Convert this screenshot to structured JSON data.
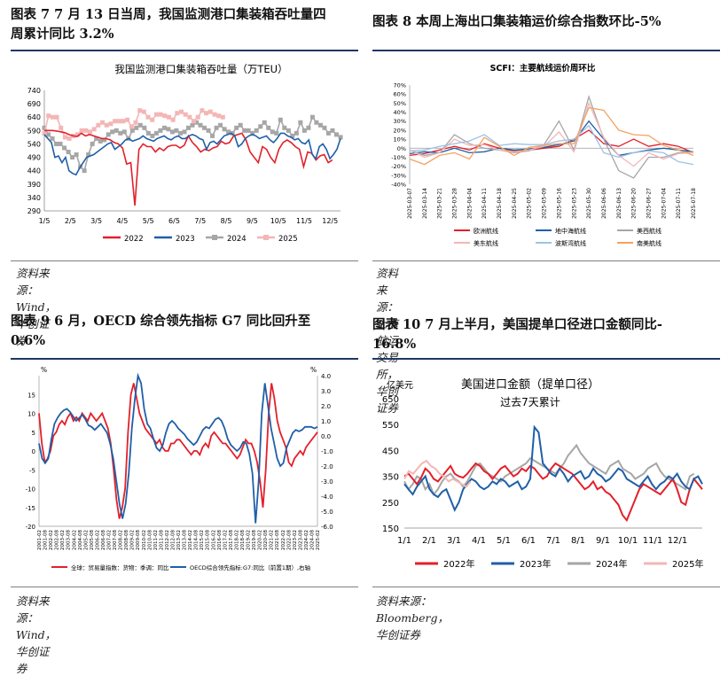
{
  "panels": [
    {
      "id": "p7",
      "title_line1": "图表 7   7 月 13 日当周，我国监测港口集装箱吞吐量四",
      "title_line2": "周累计同比 3.2%",
      "source": "资料来源：Wind，华创证券"
    },
    {
      "id": "p8",
      "title_line1": "图表 8   本周上海出口集装箱运价综合指数环比-5%",
      "title_line2": "",
      "source": "资料来源：上海航运交易所，华创证券"
    },
    {
      "id": "p9",
      "title_line1": "图表 9   6 月，OECD 综合领先指标 G7 同比回升至",
      "title_line2": "0.6%",
      "source": "资料来源：Wind，华创证券"
    },
    {
      "id": "p10",
      "title_line1": "图表 10   7 月上半月，美国提单口径进口金额同比-",
      "title_line2": "16.8%",
      "source": "资料来源：Bloomberg，华创证券"
    }
  ],
  "chart_data": [
    {
      "type": "line",
      "title": "我国监测港口集装箱吞吐量（万TEU）",
      "yticks": [
        290,
        340,
        390,
        440,
        490,
        540,
        590,
        640,
        690,
        740
      ],
      "ylim": [
        290,
        740
      ],
      "xticks": [
        "1/5",
        "2/5",
        "3/5",
        "4/5",
        "5/5",
        "6/5",
        "7/5",
        "8/5",
        "9/5",
        "10/5",
        "11/5",
        "12/5"
      ],
      "legend": "bottom",
      "series": [
        {
          "name": "2022",
          "color": "#e3202a",
          "marker": "none",
          "values": [
            590,
            590,
            590,
            588,
            585,
            582,
            575,
            570,
            568,
            580,
            570,
            575,
            570,
            565,
            560,
            560,
            555,
            545,
            540,
            525,
            465,
            470,
            310,
            520,
            540,
            530,
            530,
            510,
            525,
            515,
            530,
            535,
            535,
            525,
            535,
            570,
            545,
            530,
            510,
            520,
            515,
            525,
            530,
            550,
            540,
            545,
            570,
            575,
            580,
            555,
            510,
            490,
            470,
            530,
            520,
            490,
            470,
            520,
            545,
            555,
            545,
            530,
            520,
            455,
            510,
            505,
            480,
            495,
            500,
            470,
            480
          ]
        },
        {
          "name": "2023",
          "color": "#1f5fa8",
          "marker": "none",
          "values": [
            575,
            560,
            545,
            490,
            495,
            470,
            490,
            440,
            430,
            425,
            450,
            470,
            490,
            495,
            500,
            510,
            520,
            530,
            540,
            545,
            520,
            530,
            540,
            555,
            560,
            550,
            555,
            560,
            570,
            560,
            555,
            550,
            560,
            565,
            570,
            560,
            555,
            565,
            570,
            560,
            560,
            570,
            575,
            570,
            560,
            555,
            520,
            545,
            550,
            540,
            555,
            570,
            575,
            580,
            570,
            530,
            540,
            560,
            570,
            575,
            570,
            560,
            565,
            570,
            555,
            545,
            560,
            580,
            580,
            570,
            565,
            555,
            560,
            545,
            540,
            555,
            500,
            485,
            530,
            540,
            520,
            485,
            500,
            520,
            560
          ]
        },
        {
          "name": "2024",
          "color": "#a6a6a6",
          "marker": "square",
          "values": [
            600,
            575,
            560,
            540,
            540,
            525,
            510,
            490,
            500,
            455,
            440,
            500,
            540,
            560,
            550,
            555,
            575,
            585,
            590,
            580,
            585,
            560,
            590,
            600,
            610,
            600,
            580,
            570,
            580,
            590,
            600,
            595,
            585,
            590,
            580,
            585,
            600,
            610,
            620,
            610,
            600,
            590,
            570,
            600,
            610,
            595,
            585,
            580,
            600,
            610,
            590,
            590,
            580,
            590,
            605,
            620,
            600,
            585,
            580,
            630,
            600,
            590,
            570,
            580,
            620,
            590,
            600,
            640,
            620,
            610,
            600,
            580,
            590,
            575,
            565
          ]
        },
        {
          "name": "2025",
          "color": "#f4b6b6",
          "marker": "square",
          "values": [
            580,
            645,
            640,
            640,
            600,
            565,
            560,
            570,
            575,
            590,
            590,
            585,
            595,
            610,
            620,
            610,
            615,
            625,
            625,
            625,
            630,
            605,
            620,
            665,
            660,
            640,
            630,
            650,
            650,
            645,
            640,
            630,
            655,
            660,
            650,
            640,
            625,
            640,
            665,
            655,
            660,
            650,
            645,
            640
          ]
        }
      ]
    },
    {
      "type": "line",
      "title": "SCFI：主要航线运价周环比",
      "yticks": [
        "70%",
        "60%",
        "50%",
        "40%",
        "30%",
        "20%",
        "10%",
        "0%",
        "-10%",
        "-20%",
        "-30%",
        "-40%"
      ],
      "ylim": [
        -40,
        70
      ],
      "xticks": [
        "2025-03-07",
        "2025-03-14",
        "2025-03-21",
        "2025-03-28",
        "2025-04-04",
        "2025-04-11",
        "2025-04-18",
        "2025-04-25",
        "2025-05-02",
        "2025-05-09",
        "2025-05-16",
        "2025-05-23",
        "2025-05-30",
        "2025-06-06",
        "2025-06-13",
        "2025-06-20",
        "2025-06-27",
        "2025-07-04",
        "2025-07-11",
        "2025-07-18"
      ],
      "legend": "bottom",
      "series": [
        {
          "name": "欧洲航线",
          "color": "#e3202a",
          "values": [
            -8,
            -6,
            -2,
            2,
            -2,
            5,
            0,
            -3,
            -2,
            0,
            2,
            10,
            20,
            5,
            2,
            10,
            2,
            5,
            2,
            -5
          ]
        },
        {
          "name": "地中海航线",
          "color": "#1f5fa8",
          "values": [
            -6,
            -4,
            -5,
            0,
            -5,
            -4,
            0,
            -2,
            -1,
            1,
            4,
            8,
            30,
            10,
            -8,
            -5,
            -2,
            0,
            -2,
            -4
          ]
        },
        {
          "name": "美西航线",
          "color": "#a6a6a6",
          "values": [
            -2,
            -8,
            -5,
            15,
            5,
            0,
            -2,
            -5,
            -3,
            4,
            30,
            -2,
            57,
            10,
            -25,
            -33,
            -10,
            -10,
            -5,
            -4
          ]
        },
        {
          "name": "美东航线",
          "color": "#f4b6b6",
          "values": [
            -2,
            -10,
            -5,
            10,
            3,
            4,
            -2,
            -4,
            -2,
            2,
            18,
            -4,
            50,
            12,
            -8,
            -20,
            -5,
            -12,
            -6,
            -5
          ]
        },
        {
          "name": "波斯湾航线",
          "color": "#9dc3e6",
          "values": [
            -3,
            -2,
            2,
            5,
            8,
            15,
            3,
            5,
            4,
            4,
            8,
            10,
            25,
            -5,
            -10,
            -5,
            -3,
            -5,
            -15,
            -18
          ]
        },
        {
          "name": "南美航线",
          "color": "#f4a261",
          "values": [
            -12,
            -18,
            -8,
            -5,
            -12,
            12,
            2,
            -8,
            1,
            3,
            5,
            5,
            45,
            42,
            20,
            15,
            14,
            3,
            -2,
            -8
          ]
        }
      ]
    },
    {
      "type": "line",
      "title": "",
      "yunit_left": "%",
      "yunit_right": "%",
      "yticks_left": [
        15,
        10,
        5,
        0,
        -5,
        -10,
        -15,
        -20
      ],
      "ylim_left": [
        -20,
        20
      ],
      "yticks_right": [
        "4.0",
        "3.0",
        "2.0",
        "1.0",
        "0.0",
        "-1.0",
        "-2.0",
        "-3.0",
        "-4.0",
        "-5.0",
        "-6.0"
      ],
      "ylim_right": [
        -6,
        4
      ],
      "xticks": [
        "2001-02",
        "2002-02",
        "2003-02",
        "2004-02",
        "2005-02",
        "2006-02",
        "2007-02",
        "2008-02",
        "2009-02",
        "2010-02",
        "2011-02",
        "2012-02",
        "2013-02",
        "2014-02",
        "2015-02",
        "2016-02",
        "2017-02",
        "2018-02",
        "2019-02",
        "2020-02",
        "2021-02",
        "2022-02",
        "2023-02",
        "2024-02",
        "2025-02"
      ],
      "xticks_alt": [
        "2001-08",
        "2002-08",
        "2003-08",
        "2004-08",
        "2005-08",
        "2006-08",
        "2007-08",
        "2008-08",
        "2009-08",
        "2010-08",
        "2011-08",
        "2012-08",
        "2013-08",
        "2014-08",
        "2015-08",
        "2016-08",
        "2017-08",
        "2018-08",
        "2019-08",
        "2020-08",
        "2021-08",
        "2022-08",
        "2023-08",
        "2024-08"
      ],
      "legend": "bottom",
      "series": [
        {
          "name": "全球：贸易量指数：货物：季调：同比",
          "color": "#e3202a",
          "axis": "left",
          "values": [
            10,
            2,
            -3,
            -2,
            0,
            4,
            5,
            7,
            8,
            7,
            9,
            10,
            8,
            9,
            8,
            10,
            9,
            8,
            10,
            9,
            8,
            9,
            10,
            8,
            6,
            2,
            -5,
            -13,
            -18,
            -15,
            -10,
            5,
            15,
            18,
            14,
            10,
            8,
            6,
            5,
            4,
            3,
            2,
            3,
            1,
            0,
            0,
            2,
            2,
            3,
            3,
            2,
            1,
            0,
            -1,
            0,
            0,
            -1,
            1,
            2,
            1,
            4,
            5,
            4,
            3,
            2,
            2,
            1,
            0,
            -1,
            -2,
            -1,
            1,
            3,
            2,
            2,
            0,
            -3,
            -8,
            -15,
            -5,
            10,
            18,
            14,
            8,
            5,
            3,
            1,
            -3,
            -4,
            -2,
            -1,
            0,
            -1,
            1,
            2,
            3,
            4,
            5
          ]
        },
        {
          "name": "OECD综合领先指标:G7:同比（前置1期）,右轴",
          "color": "#1f5fa8",
          "axis": "right",
          "values": [
            -0.5,
            -1.5,
            -1.8,
            -1.5,
            -0.2,
            0.8,
            1.2,
            1.5,
            1.7,
            1.8,
            1.6,
            1.3,
            1.0,
            1.2,
            1.4,
            1.1,
            0.7,
            0.6,
            0.4,
            0.6,
            0.8,
            0.5,
            0.2,
            -0.5,
            -1.5,
            -3.0,
            -4.5,
            -5.5,
            -4.5,
            -2.5,
            0.5,
            2.5,
            4.0,
            3.5,
            1.8,
            0.8,
            0.5,
            -0.2,
            -0.8,
            -1.0,
            -0.6,
            0.2,
            0.8,
            1.0,
            0.8,
            0.5,
            0.3,
            0.1,
            -0.2,
            -0.4,
            -0.6,
            -0.4,
            0.0,
            0.4,
            0.6,
            0.5,
            0.8,
            1.1,
            1.2,
            1.0,
            0.5,
            -0.2,
            -0.6,
            -0.8,
            -1.0,
            -0.8,
            -0.4,
            -0.5,
            -1.2,
            -2.5,
            -5.8,
            -3.0,
            1.5,
            3.5,
            2.0,
            0.5,
            -0.5,
            -1.5,
            -2.0,
            -1.8,
            -0.8,
            -0.3,
            0.2,
            0.4,
            0.3,
            0.4,
            0.6,
            0.6,
            0.6,
            0.5,
            0.6
          ]
        }
      ]
    },
    {
      "type": "line",
      "title": "美国进口金额（提单口径）",
      "subtitle": "过去7天累计",
      "yunit": "亿美元",
      "yticks": [
        650,
        550,
        450,
        350,
        250,
        150
      ],
      "ylim": [
        150,
        650
      ],
      "xticks": [
        "1/1",
        "2/1",
        "3/1",
        "4/1",
        "5/1",
        "6/1",
        "7/1",
        "8/1",
        "9/1",
        "10/1",
        "11/1",
        "12/1"
      ],
      "legend": "bottom",
      "series": [
        {
          "name": "2022年",
          "color": "#e3202a",
          "values": [
            350,
            360,
            340,
            320,
            345,
            380,
            365,
            340,
            330,
            350,
            370,
            390,
            360,
            350,
            345,
            360,
            380,
            400,
            390,
            370,
            360,
            340,
            360,
            380,
            390,
            370,
            350,
            360,
            380,
            370,
            390,
            380,
            360,
            340,
            350,
            380,
            400,
            390,
            380,
            370,
            360,
            340,
            320,
            300,
            310,
            330,
            300,
            310,
            290,
            280,
            260,
            240,
            200,
            180,
            220,
            260,
            300,
            320,
            310,
            300,
            290,
            280,
            300,
            320,
            340,
            300,
            250,
            240,
            300,
            340,
            320,
            300
          ]
        },
        {
          "name": "2023年",
          "color": "#1f5fa8",
          "values": [
            320,
            300,
            280,
            310,
            330,
            350,
            300,
            280,
            270,
            290,
            300,
            260,
            220,
            250,
            300,
            320,
            340,
            330,
            310,
            300,
            310,
            330,
            320,
            340,
            330,
            310,
            320,
            330,
            300,
            310,
            340,
            540,
            520,
            400,
            380,
            360,
            350,
            380,
            360,
            330,
            350,
            360,
            370,
            340,
            350,
            380,
            360,
            350,
            330,
            340,
            360,
            380,
            370,
            340,
            330,
            320,
            310,
            330,
            350,
            320,
            300,
            320,
            330,
            350,
            340,
            360,
            330,
            310,
            300,
            340,
            350,
            320
          ]
        },
        {
          "name": "2024年",
          "color": "#a6a6a6",
          "values": [
            330,
            300,
            320,
            350,
            340,
            300,
            320,
            280,
            300,
            330,
            350,
            360,
            340,
            330,
            310,
            330,
            360,
            390,
            400,
            380,
            360,
            350,
            340,
            330,
            350,
            360,
            370,
            380,
            390,
            400,
            420,
            410,
            400,
            390,
            380,
            370,
            360,
            380,
            400,
            430,
            450,
            470,
            440,
            420,
            400,
            390,
            380,
            370,
            360,
            390,
            400,
            410,
            380,
            370,
            360,
            340,
            350,
            360,
            380,
            390,
            400,
            370,
            350,
            340,
            330,
            320,
            310,
            300,
            350,
            360
          ]
        },
        {
          "name": "2025年",
          "color": "#f4b6b6",
          "values": [
            340,
            370,
            360,
            380,
            400,
            410,
            390,
            380,
            360,
            350,
            330,
            340,
            330,
            320,
            310,
            330
          ]
        }
      ]
    }
  ]
}
